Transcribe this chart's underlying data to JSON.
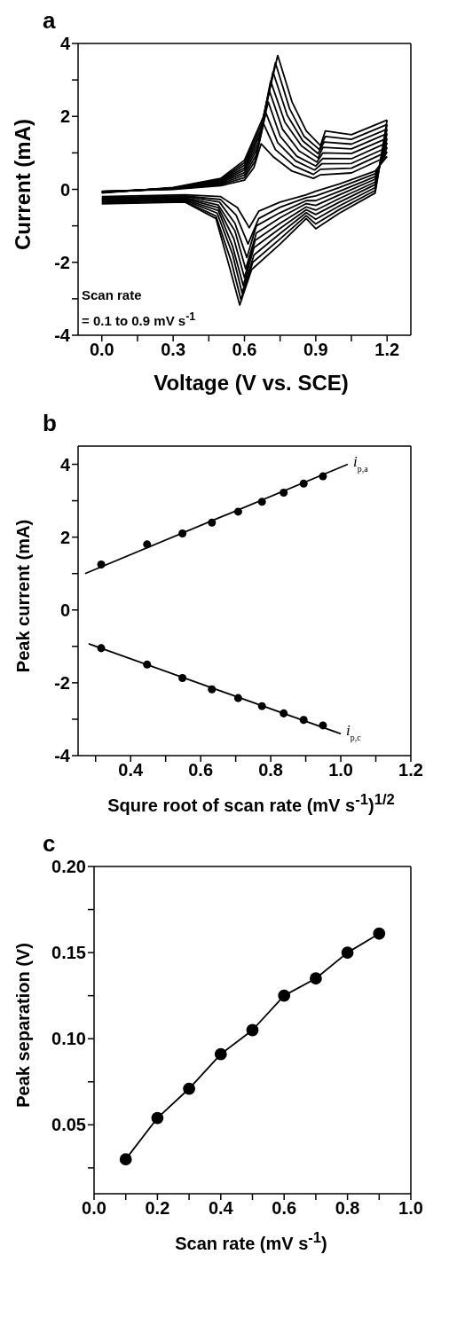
{
  "chart_data": [
    {
      "type": "line",
      "title": "a",
      "xlabel": "Voltage (V vs. SCE)",
      "ylabel": "Current (mA)",
      "marker": "none",
      "line_style": "solid",
      "xlim": [
        -0.1,
        1.3
      ],
      "xticks": [
        {
          "value": 0,
          "label": "0.0"
        },
        {
          "value": 0.15,
          "label": null
        },
        0.3,
        {
          "value": 0.45,
          "label": null
        },
        0.6,
        {
          "value": 0.75,
          "label": null
        },
        0.9,
        {
          "value": 1.05,
          "label": null
        },
        1.2
      ],
      "ylim": [
        -4,
        4
      ],
      "yticks": [
        -4,
        {
          "value": -3,
          "label": null
        },
        -2,
        {
          "value": -1,
          "label": null
        },
        0,
        {
          "value": 1,
          "label": null
        },
        2,
        {
          "value": 3,
          "label": null
        },
        4
      ],
      "annotations": [
        "Scan rate\n= 0.1 to 0.9 mV s$^{-1}$"
      ],
      "series": [
        {
          "color": "#000000",
          "x": [
            0,
            0.3,
            0.5,
            0.6,
            0.64,
            0.67,
            0.72,
            0.8,
            0.89,
            0.92,
            1.05,
            1.2
          ],
          "values": [
            -0.05,
            0,
            0.1,
            0.25,
            0.6,
            1.25,
            0.9,
            0.5,
            0.3,
            0.4,
            0.45,
            0.9
          ]
        },
        {
          "color": "#000000",
          "x": [
            1.2,
            1.15,
            1.0,
            0.9,
            0.86,
            0.75,
            0.66,
            0.62,
            0.57,
            0.5,
            0.35,
            0
          ],
          "values": [
            0.9,
            0.5,
            0.15,
            -0.05,
            -0.15,
            -0.35,
            -0.6,
            -1.05,
            -0.5,
            -0.2,
            -0.15,
            -0.2
          ]
        },
        {
          "color": "#000000",
          "x": [
            0,
            0.3,
            0.5,
            0.6,
            0.645,
            0.68,
            0.73,
            0.81,
            0.89,
            0.92,
            1.05,
            1.2
          ],
          "values": [
            -0.06,
            0.01,
            0.13,
            0.32,
            0.78,
            1.8,
            1.09,
            0.64,
            0.41,
            0.55,
            0.58,
            1.03
          ]
        },
        {
          "color": "#000000",
          "x": [
            1.2,
            1.15,
            1.0,
            0.9,
            0.86,
            0.75,
            0.66,
            0.615,
            0.565,
            0.5,
            0.35,
            0
          ],
          "values": [
            1.03,
            0.43,
            0.05,
            -0.18,
            -0.23,
            -0.49,
            -0.8,
            -1.5,
            -0.71,
            -0.28,
            -0.18,
            -0.23
          ]
        },
        {
          "color": "#000000",
          "x": [
            0,
            0.3,
            0.5,
            0.6,
            0.65,
            0.69,
            0.74,
            0.815,
            0.895,
            0.925,
            1.05,
            1.2
          ],
          "values": [
            -0.06,
            0.01,
            0.15,
            0.39,
            0.95,
            2.1,
            1.28,
            0.78,
            0.53,
            0.7,
            0.71,
            1.15
          ]
        },
        {
          "color": "#000000",
          "x": [
            1.2,
            1.15,
            1.0,
            0.9,
            0.86,
            0.75,
            0.65,
            0.61,
            0.56,
            0.495,
            0.35,
            0
          ],
          "values": [
            1.15,
            0.35,
            -0.05,
            -0.31,
            -0.31,
            -0.64,
            -1.0,
            -1.87,
            -0.93,
            -0.35,
            -0.2,
            -0.25
          ]
        },
        {
          "color": "#000000",
          "x": [
            0,
            0.3,
            0.5,
            0.6,
            0.655,
            0.7,
            0.75,
            0.82,
            0.9,
            0.93,
            1.05,
            1.2
          ],
          "values": [
            -0.07,
            0.02,
            0.18,
            0.46,
            1.13,
            2.4,
            1.46,
            0.91,
            0.64,
            0.85,
            0.84,
            1.28
          ]
        },
        {
          "color": "#000000",
          "x": [
            1.2,
            1.15,
            1.0,
            0.9,
            0.86,
            0.75,
            0.65,
            0.605,
            0.56,
            0.49,
            0.35,
            0
          ],
          "values": [
            1.28,
            0.28,
            -0.15,
            -0.44,
            -0.39,
            -0.78,
            -1.2,
            -2.18,
            -1.14,
            -0.43,
            -0.23,
            -0.28
          ]
        },
        {
          "color": "#000000",
          "x": [
            0,
            0.3,
            0.5,
            0.6,
            0.66,
            0.705,
            0.76,
            0.83,
            0.905,
            0.93,
            1.05,
            1.2
          ],
          "values": [
            -0.08,
            0.03,
            0.2,
            0.53,
            1.3,
            2.7,
            1.65,
            1.05,
            0.75,
            1.0,
            0.98,
            1.4
          ]
        },
        {
          "color": "#000000",
          "x": [
            1.2,
            1.15,
            1.0,
            0.9,
            0.86,
            0.75,
            0.645,
            0.6,
            0.555,
            0.49,
            0.35,
            0
          ],
          "values": [
            1.4,
            0.2,
            -0.25,
            -0.57,
            -0.48,
            -0.93,
            -1.4,
            -2.42,
            -1.35,
            -0.5,
            -0.25,
            -0.3
          ]
        },
        {
          "color": "#000000",
          "x": [
            0,
            0.3,
            0.5,
            0.6,
            0.665,
            0.71,
            0.77,
            0.84,
            0.91,
            0.93,
            1.05,
            1.2
          ],
          "values": [
            -0.08,
            0.03,
            0.23,
            0.59,
            1.48,
            2.97,
            1.84,
            1.19,
            0.86,
            1.15,
            1.11,
            1.53
          ]
        },
        {
          "color": "#000000",
          "x": [
            1.2,
            1.15,
            1.0,
            0.9,
            0.86,
            0.75,
            0.64,
            0.595,
            0.55,
            0.49,
            0.35,
            0
          ],
          "values": [
            1.53,
            0.13,
            -0.35,
            -0.69,
            -0.56,
            -1.07,
            -1.6,
            -2.64,
            -1.56,
            -0.58,
            -0.28,
            -0.33
          ]
        },
        {
          "color": "#000000",
          "x": [
            0,
            0.3,
            0.5,
            0.6,
            0.67,
            0.72,
            0.78,
            0.845,
            0.91,
            0.935,
            1.05,
            1.2
          ],
          "values": [
            -0.09,
            0.04,
            0.25,
            0.66,
            1.65,
            3.22,
            2.03,
            1.33,
            0.98,
            1.3,
            1.24,
            1.65
          ]
        },
        {
          "color": "#000000",
          "x": [
            1.2,
            1.15,
            1.0,
            0.9,
            0.86,
            0.75,
            0.64,
            0.59,
            0.55,
            0.485,
            0.35,
            0
          ],
          "values": [
            1.65,
            0.05,
            -0.45,
            -0.82,
            -0.64,
            -1.21,
            -1.8,
            -2.84,
            -1.78,
            -0.65,
            -0.3,
            -0.35
          ]
        },
        {
          "color": "#000000",
          "x": [
            0,
            0.3,
            0.5,
            0.6,
            0.675,
            0.73,
            0.79,
            0.85,
            0.915,
            0.94,
            1.05,
            1.2
          ],
          "values": [
            -0.09,
            0.04,
            0.28,
            0.73,
            1.83,
            3.47,
            2.21,
            1.46,
            1.09,
            1.45,
            1.37,
            1.78
          ]
        },
        {
          "color": "#000000",
          "x": [
            1.2,
            1.15,
            1.0,
            0.9,
            0.86,
            0.75,
            0.635,
            0.585,
            0.545,
            0.48,
            0.35,
            0
          ],
          "values": [
            1.78,
            -0.03,
            -0.55,
            -0.95,
            -0.72,
            -1.36,
            -2.0,
            -3.02,
            -1.99,
            -0.73,
            -0.33,
            -0.38
          ]
        },
        {
          "color": "#000000",
          "x": [
            0,
            0.3,
            0.5,
            0.6,
            0.68,
            0.74,
            0.8,
            0.86,
            0.92,
            0.94,
            1.05,
            1.2
          ],
          "values": [
            -0.1,
            0.05,
            0.3,
            0.8,
            2.0,
            3.67,
            2.4,
            1.6,
            1.2,
            1.6,
            1.5,
            1.9
          ]
        },
        {
          "color": "#000000",
          "x": [
            1.2,
            1.15,
            1.0,
            0.9,
            0.86,
            0.75,
            0.63,
            0.58,
            0.54,
            0.48,
            0.35,
            0
          ],
          "values": [
            1.9,
            -0.1,
            -0.65,
            -1.08,
            -0.8,
            -1.5,
            -2.2,
            -3.17,
            -2.2,
            -0.8,
            -0.35,
            -0.4
          ]
        }
      ]
    },
    {
      "type": "scatter",
      "title": "b",
      "xlabel": "Squre root of scan rate (mV s$^{-1}$)$^{1/2}$",
      "ylabel": "Peak current (mA)",
      "marker": "circle",
      "line_style": "solid",
      "xlim": [
        0.25,
        1.2
      ],
      "xticks": [
        {
          "value": 0.3,
          "label": null
        },
        0.4,
        {
          "value": 0.5,
          "label": null
        },
        0.6,
        {
          "value": 0.7,
          "label": null
        },
        0.8,
        {
          "value": 0.9,
          "label": null
        },
        {
          "value": 1.0,
          "label": "1.0"
        },
        {
          "value": 1.1,
          "label": null
        },
        1.2
      ],
      "ylim": [
        -4,
        4.5
      ],
      "yticks": [
        -4,
        {
          "value": -3,
          "label": null
        },
        -2,
        {
          "value": -1,
          "label": null
        },
        0,
        {
          "value": 1,
          "label": null
        },
        2,
        {
          "value": 3,
          "label": null
        },
        4
      ],
      "annotations": [
        {
          "text": "i$_{p,a}$",
          "x": 1.02,
          "y": 4.0
        },
        {
          "text": "i$_{p,c}$",
          "x": 1.0,
          "y": -3.4
        }
      ],
      "series": [
        {
          "color": "#000000",
          "x": [
            0.316,
            0.447,
            0.548,
            0.632,
            0.707,
            0.775,
            0.837,
            0.894,
            0.949
          ],
          "values": [
            1.25,
            1.8,
            2.1,
            2.4,
            2.7,
            2.97,
            3.22,
            3.47,
            3.67
          ]
        },
        {
          "color": "#000000",
          "x": [
            0.316,
            0.447,
            0.548,
            0.632,
            0.707,
            0.775,
            0.837,
            0.894,
            0.949
          ],
          "values": [
            -1.05,
            -1.5,
            -1.87,
            -2.18,
            -2.42,
            -2.64,
            -2.84,
            -3.02,
            -3.17
          ]
        },
        {
          "type": "line",
          "marker": "none",
          "color": "#000000",
          "x": [
            0.27,
            1.02
          ],
          "values": [
            1.0,
            4.0
          ]
        },
        {
          "type": "line",
          "marker": "none",
          "color": "#000000",
          "x": [
            0.28,
            1.0
          ],
          "values": [
            -0.93,
            -3.4
          ]
        }
      ]
    },
    {
      "type": "line",
      "title": "c",
      "xlabel": "Scan rate (mV s$^{-1}$)",
      "ylabel": "Peak separation (V)",
      "marker": "circle",
      "line_style": "solid",
      "xlim": [
        0,
        1
      ],
      "xticks": [
        {
          "value": 0,
          "label": "0.0"
        },
        {
          "value": 0.1,
          "label": null
        },
        0.2,
        {
          "value": 0.3,
          "label": null
        },
        0.4,
        {
          "value": 0.5,
          "label": null
        },
        0.6,
        {
          "value": 0.7,
          "label": null
        },
        0.8,
        {
          "value": 0.9,
          "label": null
        },
        {
          "value": 1,
          "label": "1.0"
        }
      ],
      "ylim": [
        0.01,
        0.2
      ],
      "yticks": [
        {
          "value": 0.025,
          "label": null
        },
        0.05,
        {
          "value": 0.075,
          "label": null
        },
        {
          "value": 0.1,
          "label": "0.10"
        },
        {
          "value": 0.125,
          "label": null
        },
        0.15,
        {
          "value": 0.175,
          "label": null
        },
        {
          "value": 0.2,
          "label": "0.20"
        }
      ],
      "x": [
        0.1,
        0.2,
        0.3,
        0.4,
        0.5,
        0.6,
        0.7,
        0.8,
        0.9
      ],
      "series": [
        {
          "color": "#000000",
          "values": [
            0.03,
            0.054,
            0.071,
            0.091,
            0.105,
            0.125,
            0.135,
            0.15,
            0.161
          ]
        }
      ]
    }
  ]
}
